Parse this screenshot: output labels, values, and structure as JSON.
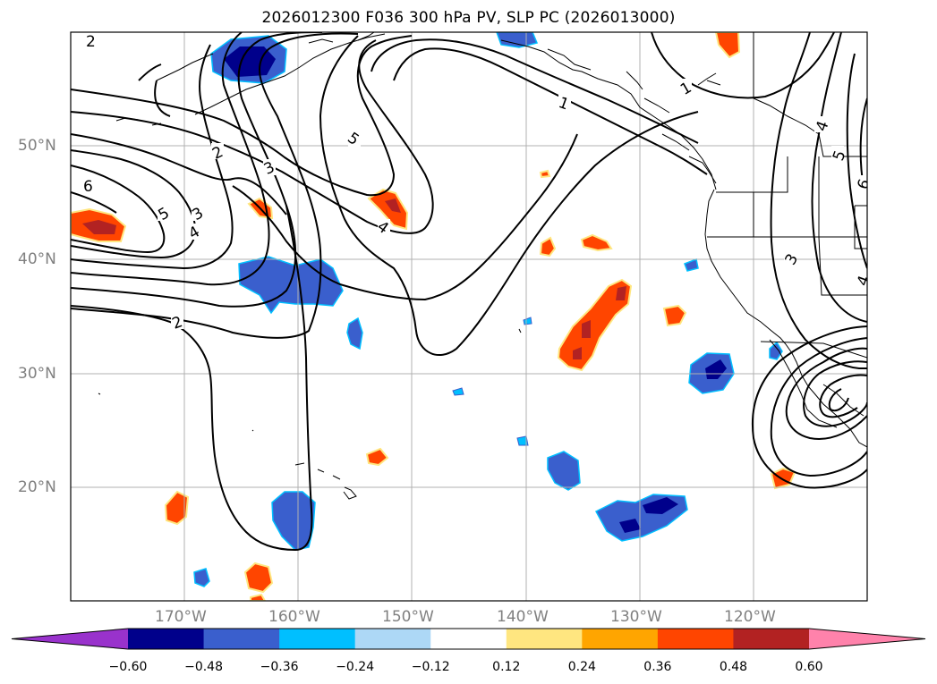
{
  "chart_data": {
    "type": "contour",
    "title": "2026012300 F036 300 hPa PV, SLP PC (2026013000)",
    "map": {
      "projection": "PlateCarree",
      "lon_range": [
        -180,
        -110
      ],
      "lat_range": [
        10,
        60
      ],
      "grid": true,
      "coastlines": true
    },
    "x_ticks": [
      "170°W",
      "160°W",
      "150°W",
      "140°W",
      "130°W",
      "120°W"
    ],
    "y_ticks": [
      "50°N",
      "40°N",
      "30°N",
      "20°N"
    ],
    "colorbar": {
      "orientation": "horizontal",
      "extend": "both",
      "ticks": [
        "−0.60",
        "−0.48",
        "−0.36",
        "−0.24",
        "−0.12",
        "0.12",
        "0.24",
        "0.36",
        "0.48",
        "0.60"
      ],
      "colors": [
        "#9932cc",
        "#00008b",
        "#3a5fcd",
        "#00bfff",
        "#add8f6",
        "#ffffff",
        "#ffe680",
        "#ffa500",
        "#ff4500",
        "#b22222",
        "#ff82ab"
      ]
    },
    "contour_labels": [
      "2",
      "6",
      "5",
      "3",
      "4",
      "2",
      "2",
      "3",
      "5",
      "4",
      "1",
      "1",
      "4",
      "5",
      "6",
      "3",
      "4"
    ]
  }
}
